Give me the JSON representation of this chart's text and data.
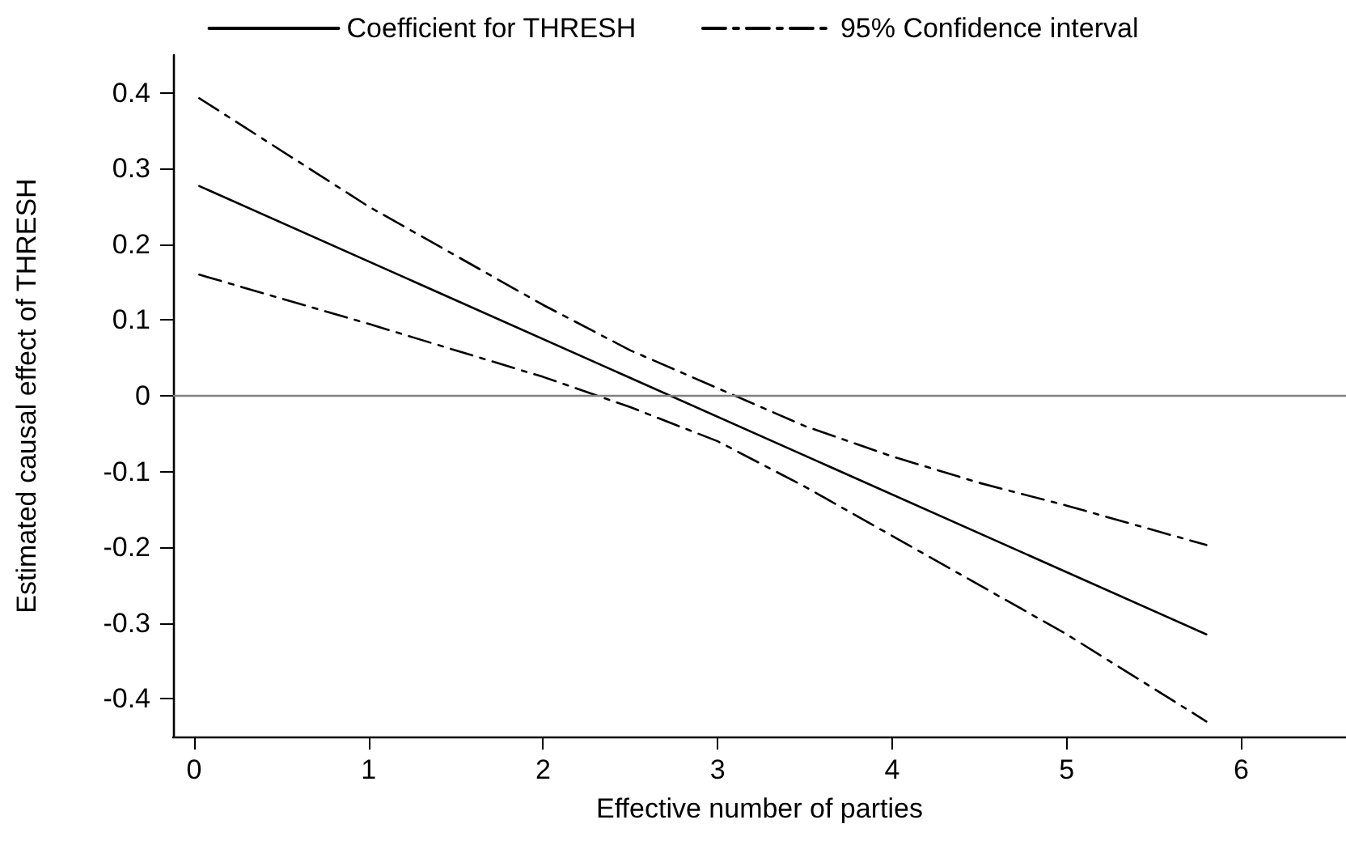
{
  "chart_data": {
    "type": "line",
    "xlabel": "Effective number of parties",
    "ylabel": "Estimated causal effect of THRESH",
    "xlim": [
      -0.12,
      6.6
    ],
    "xticks": [
      0,
      1,
      2,
      3,
      4,
      5,
      6
    ],
    "ylim": [
      -0.45,
      0.45
    ],
    "yticks": [
      -0.4,
      -0.3,
      -0.2,
      -0.1,
      0,
      0.1,
      0.2,
      0.3,
      0.4
    ],
    "grid": false,
    "legend": "top",
    "marker": "none",
    "series": [
      {
        "name": "Coefficient for THRESH",
        "color": "#000000",
        "line_style": "solid",
        "x": [
          0.03,
          5.8
        ],
        "values": [
          0.277,
          -0.315
        ]
      },
      {
        "name": "95% Confidence interval",
        "color": "#000000",
        "line_style": "dashed",
        "x": [
          0.03,
          1,
          2,
          2.5,
          3,
          3.5,
          4,
          4.5,
          5,
          5.8
        ],
        "values": [
          0.393,
          0.25,
          0.12,
          0.06,
          0.01,
          -0.04,
          -0.08,
          -0.115,
          -0.145,
          -0.197
        ]
      },
      {
        "color": "#000000",
        "line_style": "dashed",
        "x": [
          0.03,
          1,
          2,
          2.5,
          3,
          3.5,
          4,
          4.5,
          5,
          5.8
        ],
        "values": [
          0.16,
          0.095,
          0.025,
          -0.015,
          -0.06,
          -0.12,
          -0.185,
          -0.25,
          -0.315,
          -0.43
        ]
      }
    ],
    "ref_lines": [
      {
        "axis": "y",
        "value": 0,
        "color": "#808080"
      }
    ]
  }
}
